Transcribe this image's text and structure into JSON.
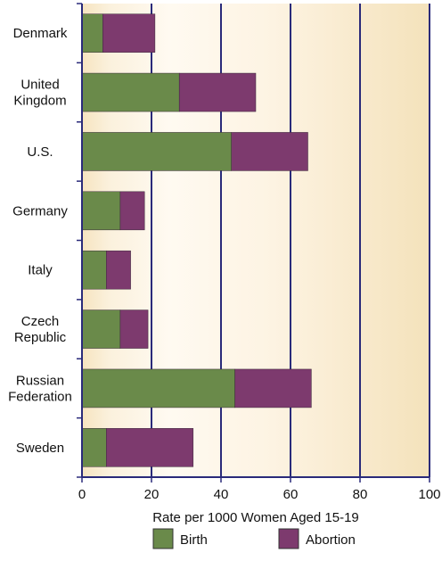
{
  "chart_data": {
    "type": "bar",
    "orientation": "horizontal",
    "stacked": true,
    "categories": [
      [
        "Denmark"
      ],
      [
        "United",
        "Kingdom"
      ],
      [
        "U.S."
      ],
      [
        "Germany"
      ],
      [
        "Italy"
      ],
      [
        "Czech",
        "Republic"
      ],
      [
        "Russian",
        "Federation"
      ],
      [
        "Sweden"
      ]
    ],
    "series": [
      {
        "name": "Birth",
        "color": "#6a8a4a",
        "values": [
          6,
          28,
          43,
          11,
          7,
          11,
          44,
          7
        ]
      },
      {
        "name": "Abortion",
        "color": "#7d3a6e",
        "values": [
          15,
          22,
          22,
          7,
          7,
          8,
          22,
          25
        ]
      }
    ],
    "xlim": [
      0,
      100
    ],
    "xticks": [
      0,
      20,
      40,
      60,
      80,
      100
    ],
    "xlabel": "Rate per 1000 Women Aged 15-19",
    "grid": true,
    "legend_position": "bottom"
  }
}
